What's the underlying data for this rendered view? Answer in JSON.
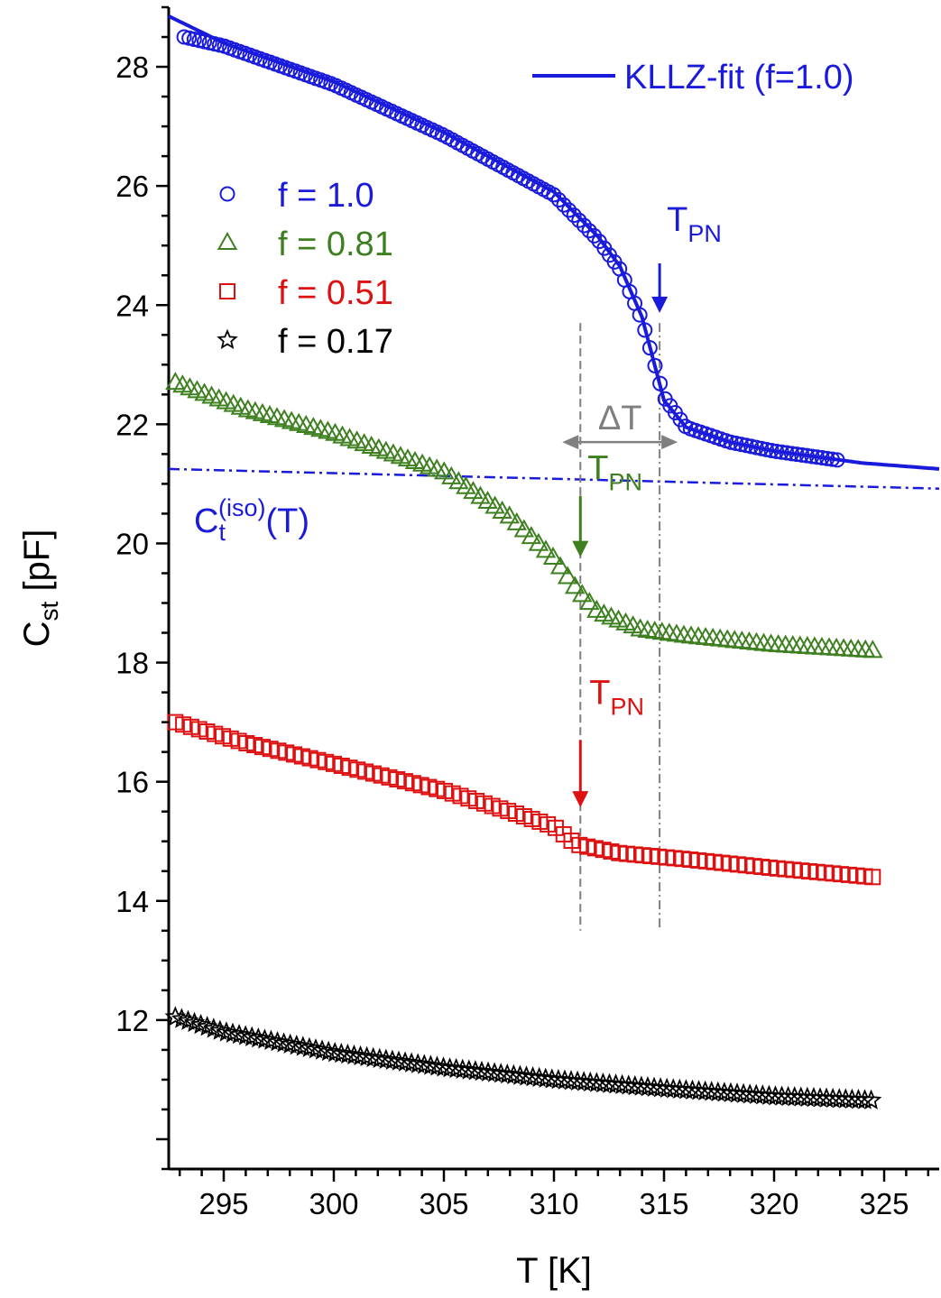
{
  "chart_data": {
    "type": "scatter",
    "xlabel": "T [K]",
    "ylabel_main": "C",
    "ylabel_sub": "st",
    "ylabel_unit": " [pF]",
    "xlim": [
      292.5,
      327.5
    ],
    "ylim": [
      9.5,
      29.0
    ],
    "x_ticks": [
      295,
      300,
      305,
      310,
      315,
      320,
      325
    ],
    "y_ticks": [
      12,
      14,
      16,
      18,
      20,
      22,
      24,
      26,
      28
    ],
    "series": [
      {
        "name": "f = 1.0",
        "marker": "circle",
        "color": "#1a1adc",
        "x_range": [
          293.2,
          322.9
        ],
        "curve_T": [
          293.2,
          295,
          300,
          305,
          310,
          312,
          313,
          314,
          314.5,
          315,
          316,
          318,
          320,
          322.9
        ],
        "curve_C": [
          28.5,
          28.35,
          27.7,
          26.85,
          25.85,
          25.1,
          24.6,
          23.75,
          23.1,
          22.45,
          21.95,
          21.7,
          21.55,
          21.4
        ]
      },
      {
        "name": "f = 0.81",
        "marker": "triangle",
        "color": "#3e8020",
        "x_range": [
          292.8,
          324.5
        ],
        "curve_T": [
          292.8,
          296,
          300,
          305,
          308,
          310,
          311,
          312,
          314,
          316,
          320,
          324.5
        ],
        "curve_C": [
          22.7,
          22.25,
          21.85,
          21.2,
          20.45,
          19.75,
          19.25,
          18.85,
          18.55,
          18.45,
          18.3,
          18.2
        ]
      },
      {
        "name": "f = 0.51",
        "marker": "square",
        "color": "#dd1111",
        "x_range": [
          292.8,
          324.5
        ],
        "curve_T": [
          292.8,
          296,
          300,
          305,
          308,
          310,
          311,
          313,
          316,
          320,
          324.5
        ],
        "curve_C": [
          17.0,
          16.65,
          16.3,
          15.85,
          15.5,
          15.25,
          14.95,
          14.8,
          14.7,
          14.55,
          14.4
        ]
      },
      {
        "name": "f = 0.17",
        "marker": "star",
        "color": "#000000",
        "x_range": [
          292.8,
          324.5
        ],
        "curve_T": [
          292.8,
          295,
          300,
          305,
          310,
          315,
          320,
          324.5
        ],
        "curve_C": [
          12.05,
          11.8,
          11.45,
          11.2,
          11.0,
          10.85,
          10.72,
          10.65
        ]
      }
    ],
    "fit_line": {
      "label": "KLLZ-fit (f=1.0)",
      "color": "#1a1adc",
      "T": [
        292.5,
        295,
        300,
        305,
        310,
        312,
        313,
        314,
        314.5,
        315,
        316,
        318,
        320,
        324,
        327.5
      ],
      "C": [
        28.85,
        28.4,
        27.75,
        26.9,
        25.9,
        25.15,
        24.65,
        23.8,
        23.1,
        22.4,
        21.95,
        21.7,
        21.55,
        21.35,
        21.25
      ]
    },
    "iso_line": {
      "label_main": "C",
      "label_sub": "t",
      "label_sup": "(iso)",
      "label_tail": "(T)",
      "color": "#1a1adc",
      "T": [
        292.5,
        327.5
      ],
      "C": [
        21.25,
        20.92
      ]
    },
    "vlines": {
      "T": [
        311.2,
        314.8
      ],
      "C_range": [
        13.5,
        23.7
      ],
      "color": "#7f7f7f"
    },
    "delta_T": {
      "label": "ΔT",
      "color": "#7f7f7f",
      "T1": 311.2,
      "T2": 314.8,
      "C": 21.7
    },
    "arrows": [
      {
        "label_main": "T",
        "label_sub": "PN",
        "color": "#1a1adc",
        "T": 314.8,
        "C_from": 24.7,
        "C_to": 23.9
      },
      {
        "label_main": "T",
        "label_sub": "PN",
        "color": "#3e8020",
        "T": 311.2,
        "C_from": 20.8,
        "C_to": 19.8
      },
      {
        "label_main": "T",
        "label_sub": "PN",
        "color": "#dd1111",
        "T": 311.2,
        "C_from": 16.7,
        "C_to": 15.6
      }
    ]
  }
}
